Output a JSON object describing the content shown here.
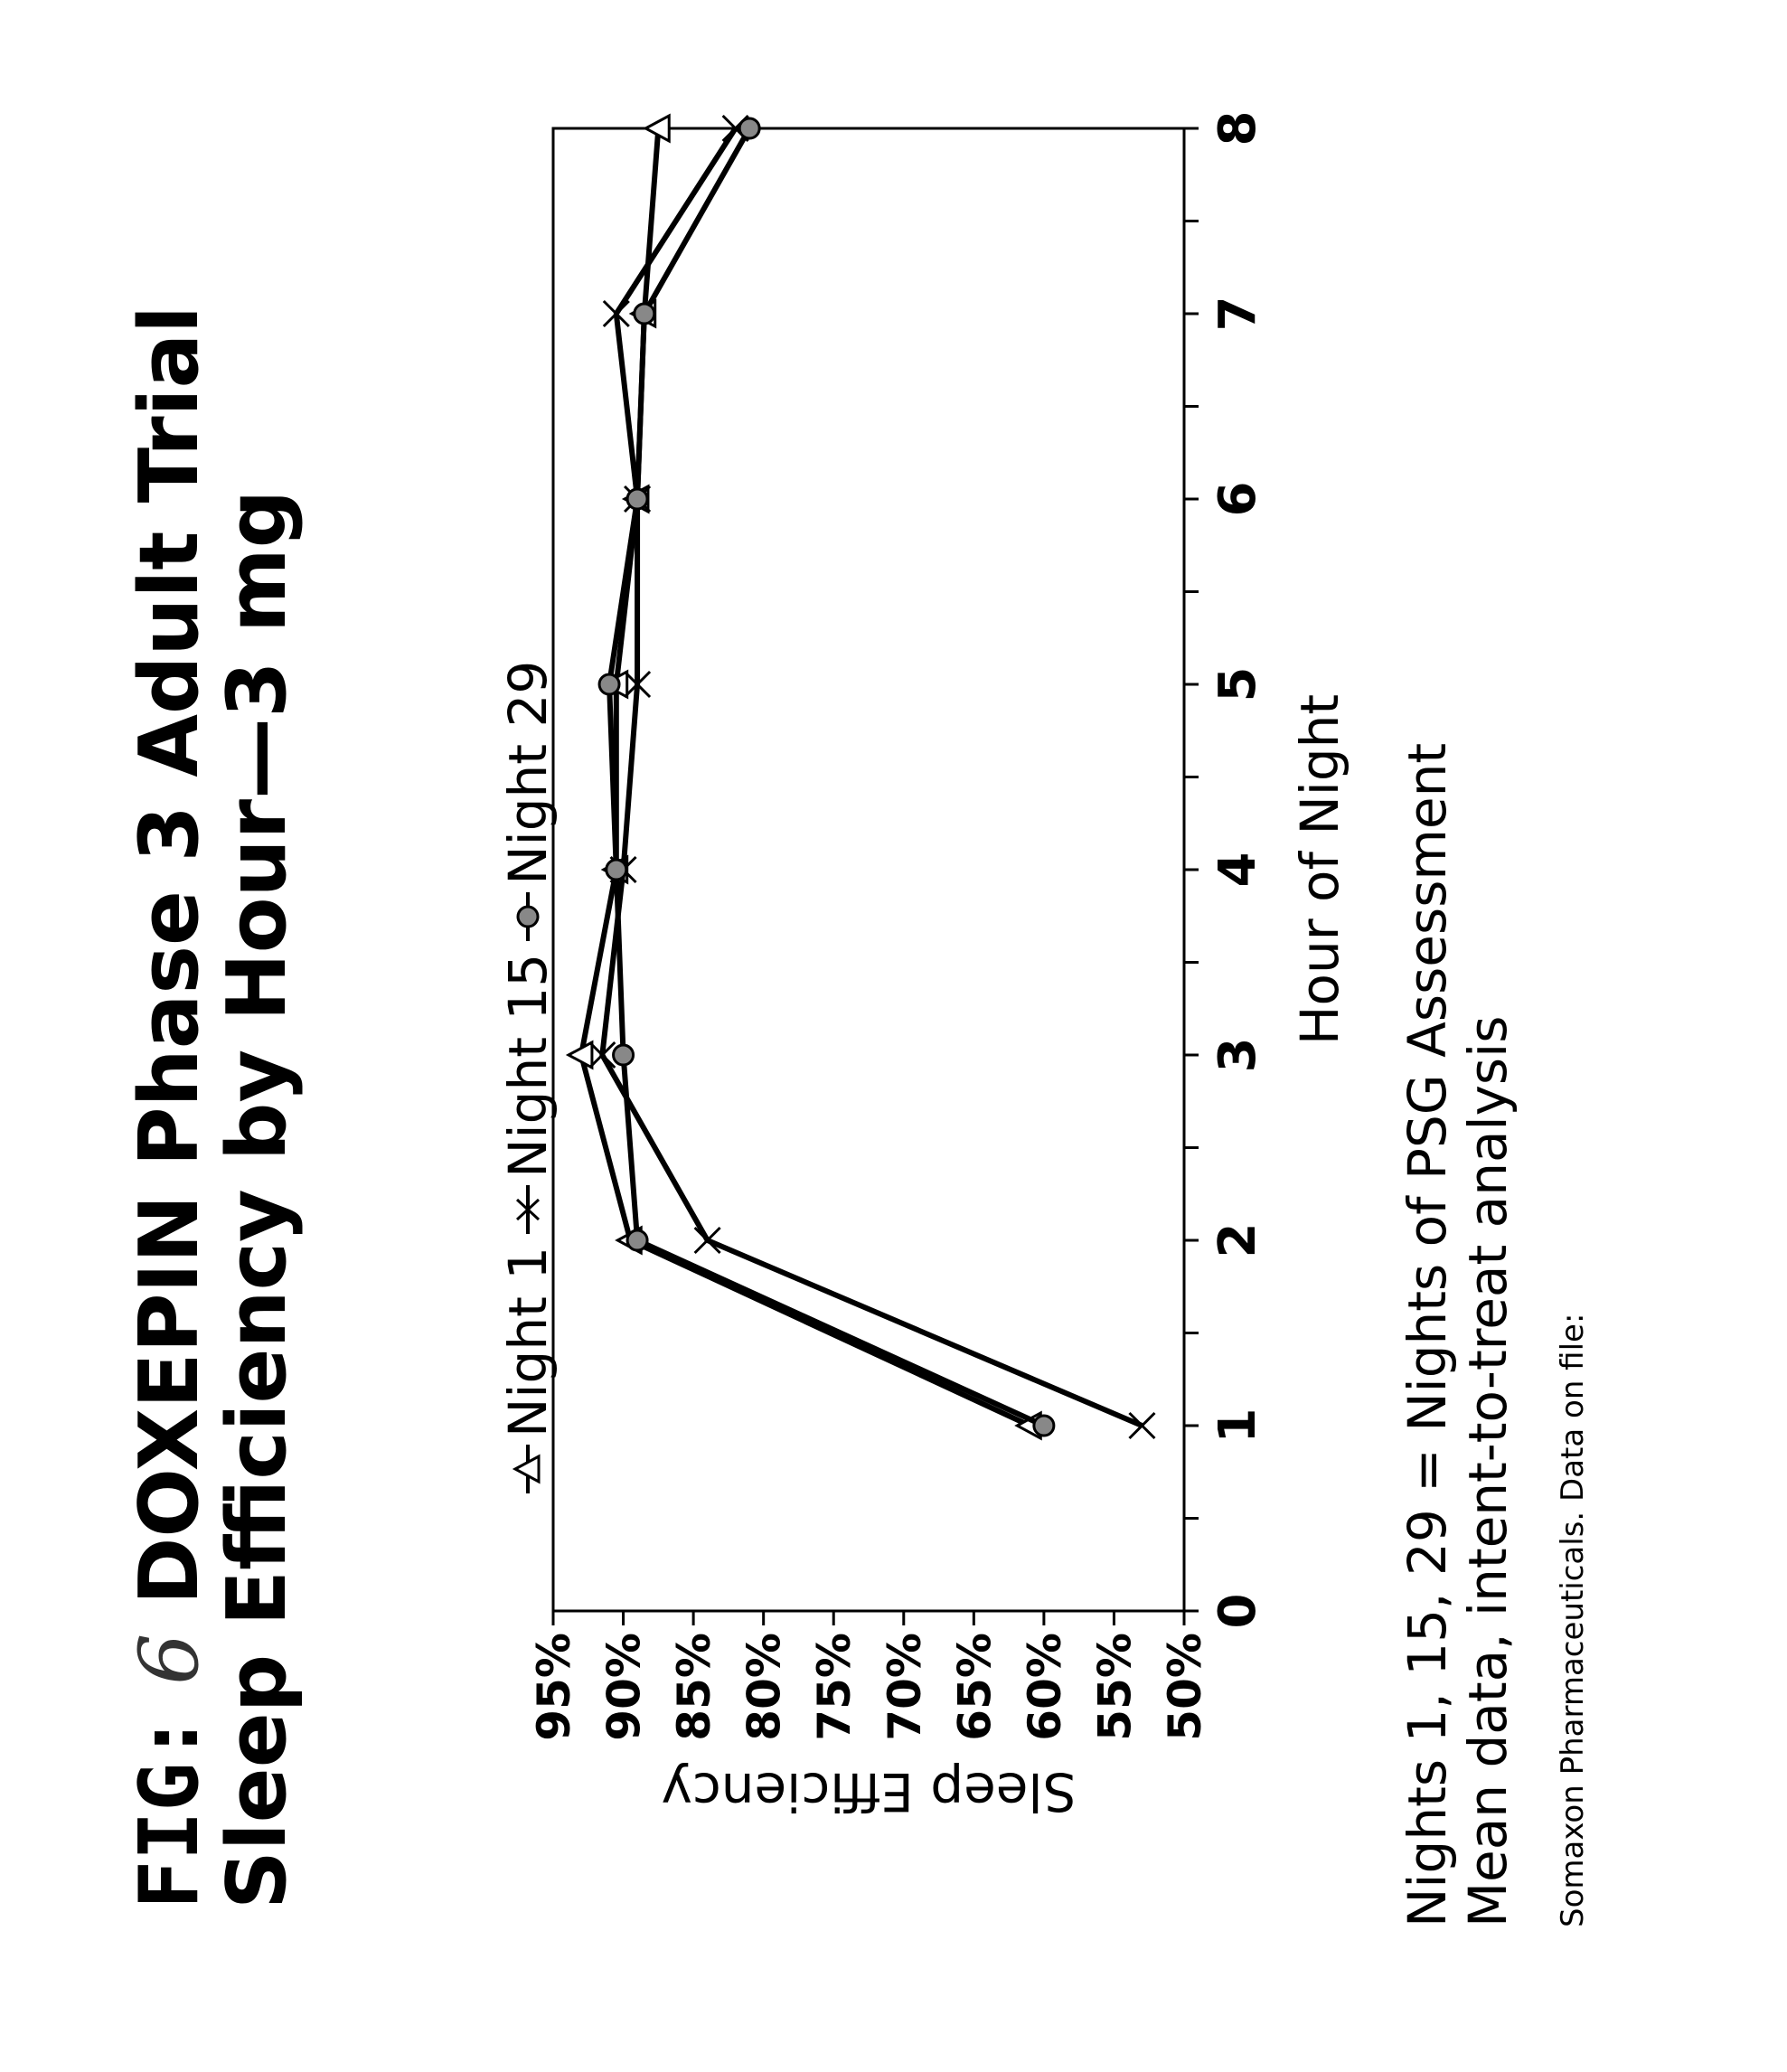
{
  "figure": {
    "fig_label": "FIG:",
    "fig_number": "6",
    "title_line1": "DOXEPIN Phase 3 Adult Trial",
    "title_line2": "Sleep Efficiency by Hour—3 mg"
  },
  "footnotes": {
    "line1": "Nights 1, 15, 29 = Nights of PSG Assessment",
    "line2": "Mean data, intent-to-treat analysis",
    "source": "Somaxon Pharmaceuticals. Data on file:"
  },
  "colors": {
    "ink": "#000000",
    "background": "#ffffff"
  },
  "chart_data": {
    "type": "line",
    "xlabel": "Hour of Night",
    "ylabel": "Sleep Efficiency",
    "xlim": [
      0,
      8
    ],
    "ylim": [
      50,
      95
    ],
    "x_ticks": [
      "0",
      "1",
      "2",
      "3",
      "4",
      "5",
      "6",
      "7",
      "8"
    ],
    "y_ticks": [
      "50%",
      "55%",
      "60%",
      "65%",
      "70%",
      "75%",
      "80%",
      "85%",
      "90%",
      "95%"
    ],
    "x_tick_values": [
      0,
      1,
      2,
      3,
      4,
      5,
      6,
      7,
      8
    ],
    "y_tick_values": [
      50,
      55,
      60,
      65,
      70,
      75,
      80,
      85,
      90,
      95
    ],
    "grid": false,
    "legend_position": "top",
    "series": [
      {
        "name": "Night 1",
        "marker": "triangle",
        "x": [
          1,
          2,
          3,
          4,
          5,
          6,
          7,
          8
        ],
        "y": [
          61,
          89.5,
          93,
          90.5,
          90.5,
          89,
          88.5,
          87.5
        ]
      },
      {
        "name": "Night 15",
        "marker": "x",
        "x": [
          1,
          2,
          3,
          4,
          5,
          6,
          7,
          8
        ],
        "y": [
          53,
          84,
          91.5,
          90,
          89,
          89,
          90.5,
          82
        ]
      },
      {
        "name": "Night 29",
        "marker": "circle",
        "x": [
          1,
          2,
          3,
          4,
          5,
          6,
          7,
          8
        ],
        "y": [
          60,
          89,
          90,
          90.5,
          91,
          89,
          88.5,
          81
        ]
      }
    ]
  }
}
